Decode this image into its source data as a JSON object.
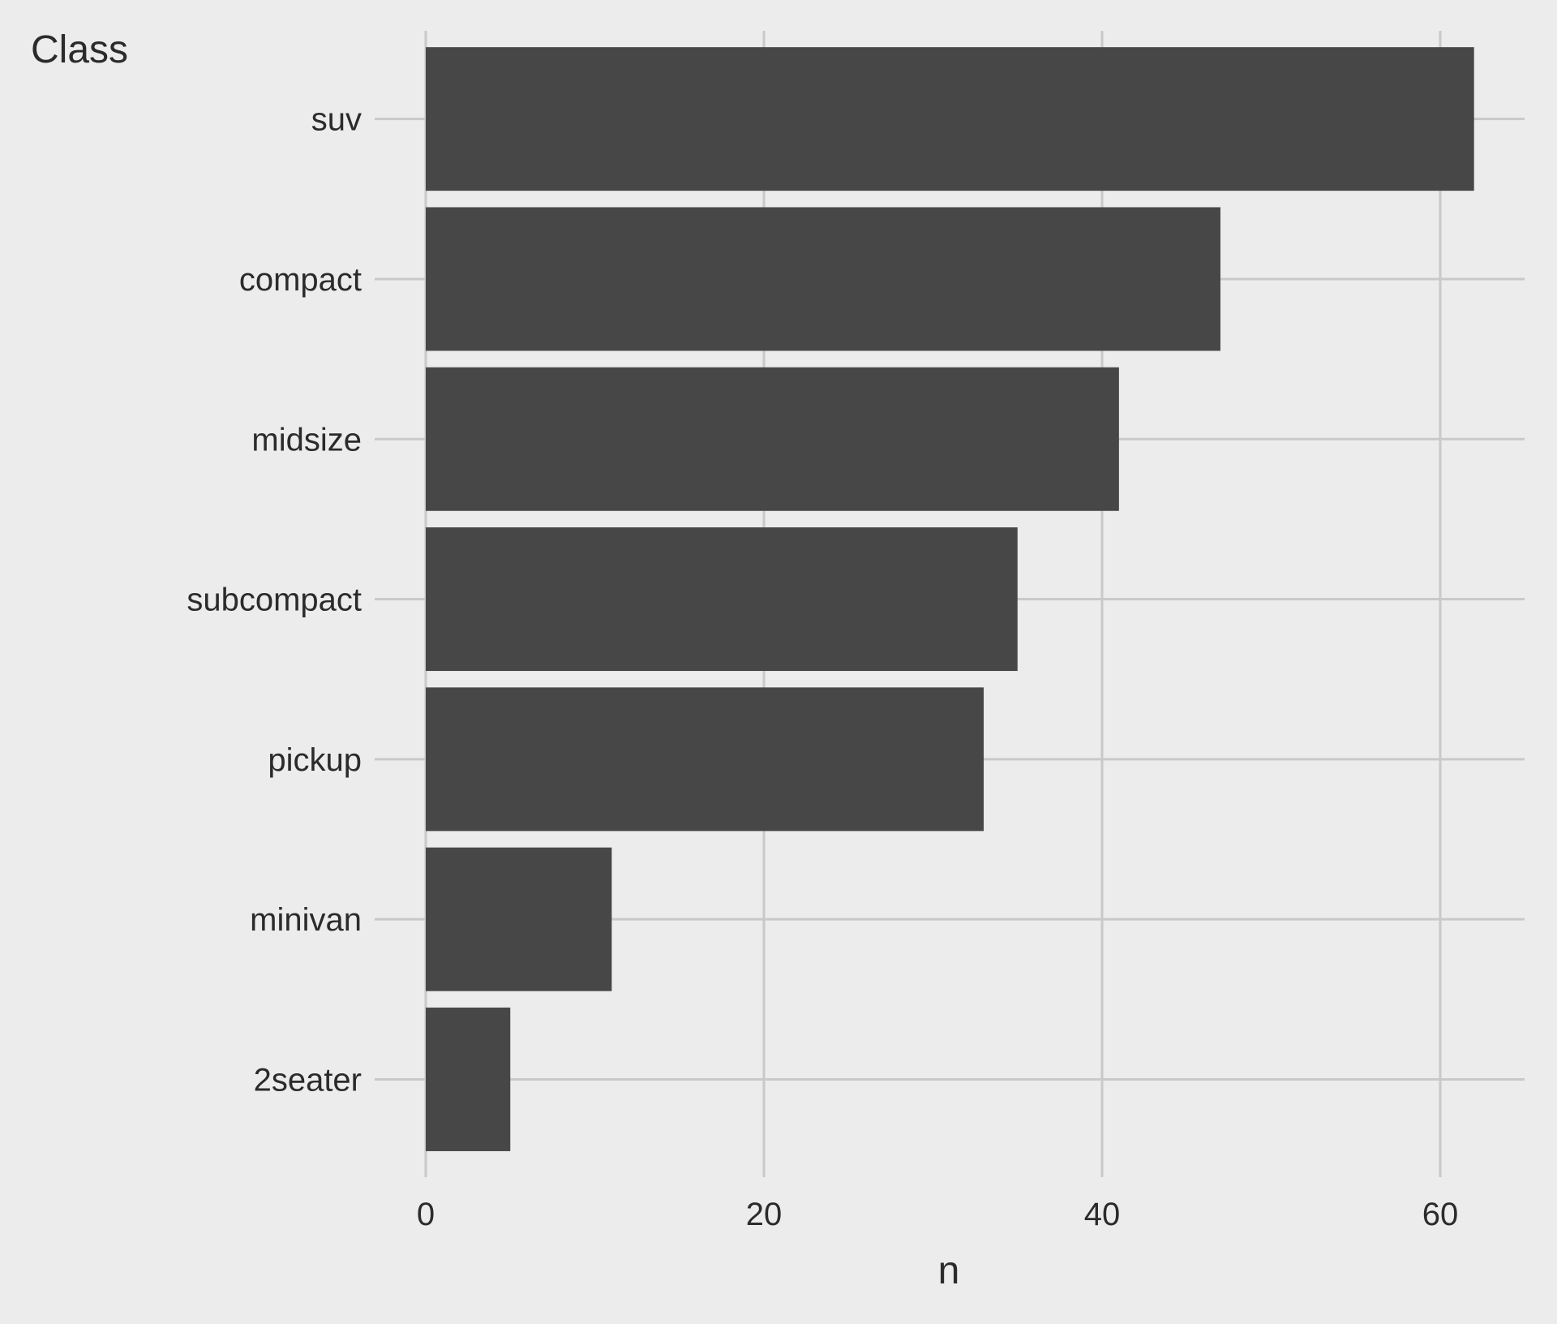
{
  "chart_data": {
    "type": "bar",
    "orientation": "horizontal",
    "categories": [
      "suv",
      "compact",
      "midsize",
      "subcompact",
      "pickup",
      "minivan",
      "2seater"
    ],
    "values": [
      62,
      47,
      41,
      35,
      33,
      11,
      5
    ],
    "xlabel": "n",
    "ylabel": "Class",
    "xticks": [
      0,
      20,
      40,
      60
    ],
    "xlim": [
      0,
      65
    ],
    "grid": true,
    "colors": {
      "background": "#ececec",
      "bar": "#474747",
      "grid": "#c9c9c9",
      "text": "#2b2b2b"
    }
  }
}
